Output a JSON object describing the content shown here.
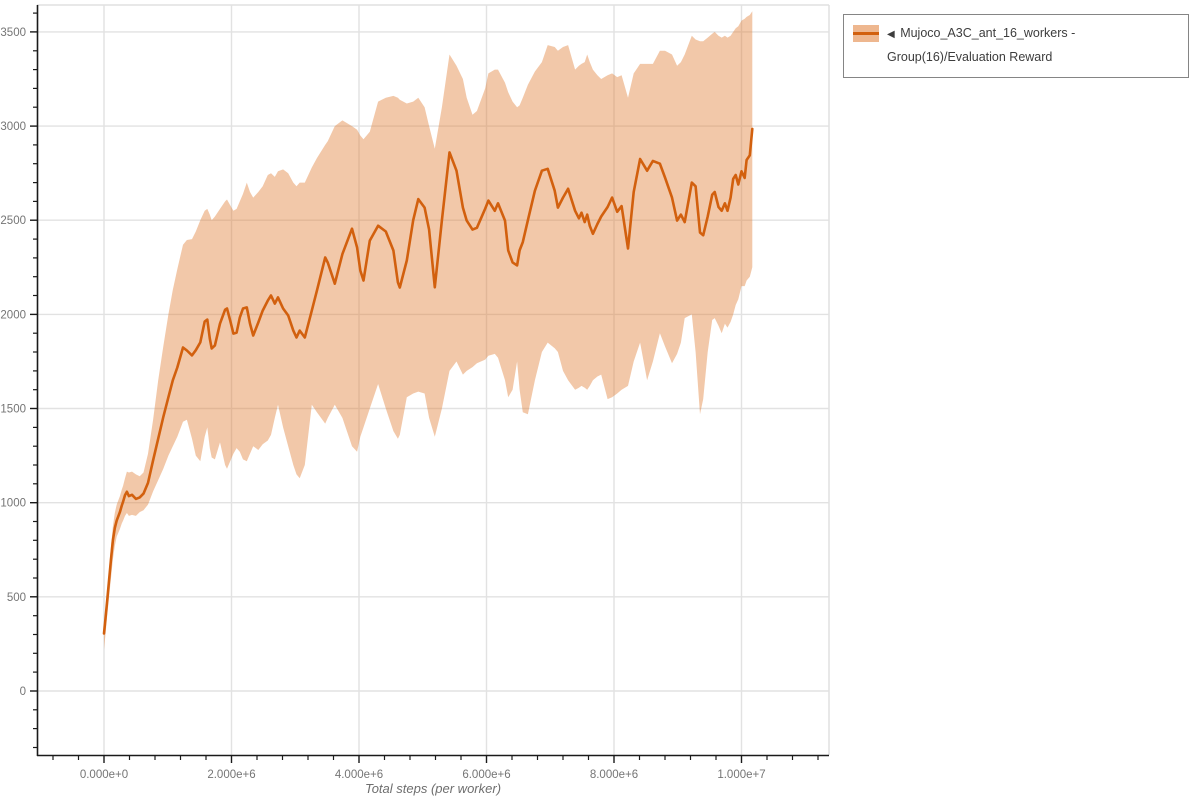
{
  "legend": {
    "marker": "◀",
    "label": "Mujoco_A3C_ant_16_workers - Group(16)/Evaluation Reward"
  },
  "colors": {
    "line": "#d2600e",
    "band_fill": "#e07b33",
    "band_opacity": 0.42,
    "swatch_band_opacity": 0.55,
    "grid": "#e2e2e2",
    "plot_border": "#e0e0e0",
    "axis": "#1a1a1a",
    "tick_label": "#757575",
    "axis_title": "#6e6e6e",
    "legend_border": "#858585",
    "legend_text": "#3d3d3d"
  },
  "chart_data": {
    "type": "line+band",
    "title": "",
    "xlabel": "Total steps (per worker)",
    "ylabel": "",
    "grid": true,
    "legend_position": "top-right",
    "x_range": [
      -1051000,
      11373000
    ],
    "y_range": [
      -340,
      3643
    ],
    "x_scale": 1000000,
    "x_ticks": {
      "major": [
        0,
        2000000,
        4000000,
        6000000,
        8000000,
        10000000
      ],
      "labels": [
        "0.000e+0",
        "2.000e+6",
        "4.000e+6",
        "6.000e+6",
        "8.000e+6",
        "1.000e+7"
      ],
      "minor_step": 400000,
      "minor_range": [
        -800000,
        11200000
      ]
    },
    "y_ticks": {
      "major": [
        0,
        500,
        1000,
        1500,
        2000,
        2500,
        3000,
        3500
      ],
      "labels": [
        "0",
        "500",
        "1000",
        "1500",
        "2000",
        "2500",
        "3000",
        "3500"
      ],
      "minor_step": 100,
      "minor_range": [
        -300,
        3600
      ]
    },
    "series": [
      {
        "name": "Mujoco_A3C_ant_16_workers - Group(16)/Evaluation Reward",
        "x_e6": [
          0.0,
          0.02,
          0.05,
          0.08,
          0.11,
          0.14,
          0.17,
          0.2,
          0.25,
          0.28,
          0.3,
          0.33,
          0.36,
          0.39,
          0.44,
          0.5,
          0.56,
          0.62,
          0.69,
          0.77,
          0.85,
          0.93,
          1.01,
          1.08,
          1.15,
          1.24,
          1.3,
          1.38,
          1.44,
          1.51,
          1.58,
          1.62,
          1.66,
          1.69,
          1.74,
          1.82,
          1.9,
          1.93,
          1.98,
          2.03,
          2.08,
          2.13,
          2.18,
          2.24,
          2.29,
          2.34,
          2.42,
          2.49,
          2.57,
          2.62,
          2.68,
          2.73,
          2.81,
          2.89,
          2.97,
          3.02,
          3.07,
          3.15,
          3.26,
          3.34,
          3.47,
          3.51,
          3.62,
          3.74,
          3.89,
          3.97,
          4.02,
          4.07,
          4.17,
          4.3,
          4.42,
          4.54,
          4.61,
          4.64,
          4.75,
          4.85,
          4.93,
          5.03,
          5.1,
          5.19,
          5.3,
          5.42,
          5.53,
          5.63,
          5.69,
          5.78,
          5.85,
          5.98,
          6.03,
          6.13,
          6.18,
          6.29,
          6.34,
          6.41,
          6.48,
          6.52,
          6.57,
          6.65,
          6.76,
          6.87,
          6.96,
          7.07,
          7.12,
          7.2,
          7.28,
          7.39,
          7.45,
          7.49,
          7.54,
          7.58,
          7.62,
          7.67,
          7.74,
          7.8,
          7.9,
          7.97,
          8.05,
          8.12,
          8.22,
          8.31,
          8.41,
          8.52,
          8.61,
          8.72,
          8.8,
          8.91,
          8.99,
          9.05,
          9.11,
          9.22,
          9.28,
          9.35,
          9.4,
          9.47,
          9.54,
          9.58,
          9.64,
          9.69,
          9.74,
          9.78,
          9.83,
          9.87,
          9.91,
          9.95,
          10.0,
          10.05,
          10.08,
          10.13,
          10.17
        ],
        "mean": [
          305,
          375,
          480,
          590,
          700,
          800,
          865,
          905,
          950,
          985,
          1005,
          1040,
          1058,
          1035,
          1042,
          1020,
          1028,
          1048,
          1105,
          1225,
          1340,
          1455,
          1560,
          1650,
          1718,
          1824,
          1808,
          1782,
          1810,
          1851,
          1962,
          1972,
          1872,
          1819,
          1835,
          1951,
          2025,
          2031,
          1967,
          1898,
          1903,
          1983,
          2031,
          2037,
          1951,
          1888,
          1957,
          2020,
          2073,
          2100,
          2057,
          2090,
          2031,
          1994,
          1914,
          1877,
          1914,
          1877,
          2020,
          2126,
          2302,
          2275,
          2163,
          2320,
          2455,
          2355,
          2233,
          2180,
          2392,
          2471,
          2440,
          2339,
          2170,
          2143,
          2286,
          2500,
          2612,
          2567,
          2450,
          2144,
          2500,
          2860,
          2763,
          2567,
          2498,
          2450,
          2460,
          2562,
          2604,
          2550,
          2590,
          2498,
          2340,
          2276,
          2260,
          2340,
          2384,
          2500,
          2657,
          2763,
          2773,
          2657,
          2567,
          2620,
          2667,
          2550,
          2510,
          2540,
          2490,
          2530,
          2470,
          2428,
          2480,
          2520,
          2570,
          2620,
          2545,
          2575,
          2350,
          2650,
          2825,
          2763,
          2815,
          2800,
          2727,
          2620,
          2498,
          2530,
          2490,
          2700,
          2680,
          2435,
          2420,
          2520,
          2635,
          2650,
          2570,
          2550,
          2590,
          2550,
          2620,
          2720,
          2740,
          2690,
          2760,
          2725,
          2820,
          2845,
          2985
        ],
        "band_upper": [
          345,
          420,
          530,
          650,
          770,
          875,
          945,
          990,
          1035,
          1070,
          1090,
          1130,
          1165,
          1160,
          1165,
          1150,
          1140,
          1160,
          1260,
          1440,
          1650,
          1830,
          2000,
          2130,
          2240,
          2370,
          2395,
          2400,
          2440,
          2500,
          2550,
          2560,
          2530,
          2500,
          2520,
          2560,
          2600,
          2610,
          2580,
          2550,
          2560,
          2600,
          2640,
          2700,
          2650,
          2620,
          2650,
          2680,
          2740,
          2750,
          2730,
          2760,
          2770,
          2750,
          2700,
          2680,
          2700,
          2700,
          2780,
          2830,
          2900,
          2920,
          3000,
          3030,
          3000,
          2980,
          2950,
          2930,
          2970,
          3130,
          3150,
          3160,
          3150,
          3140,
          3120,
          3130,
          3150,
          3100,
          3000,
          2880,
          3100,
          3380,
          3320,
          3250,
          3150,
          3060,
          3080,
          3200,
          3280,
          3300,
          3300,
          3230,
          3180,
          3130,
          3100,
          3110,
          3150,
          3220,
          3290,
          3340,
          3430,
          3420,
          3400,
          3420,
          3430,
          3300,
          3320,
          3330,
          3340,
          3380,
          3340,
          3300,
          3270,
          3250,
          3270,
          3280,
          3260,
          3270,
          3150,
          3280,
          3330,
          3330,
          3330,
          3400,
          3400,
          3380,
          3320,
          3340,
          3380,
          3480,
          3460,
          3450,
          3450,
          3470,
          3490,
          3500,
          3480,
          3470,
          3480,
          3470,
          3480,
          3500,
          3520,
          3530,
          3560,
          3570,
          3580,
          3590,
          3610
        ],
        "band_lower": [
          220,
          290,
          400,
          500,
          600,
          700,
          770,
          820,
          860,
          890,
          905,
          930,
          945,
          930,
          935,
          930,
          950,
          960,
          990,
          1060,
          1120,
          1180,
          1250,
          1300,
          1350,
          1430,
          1440,
          1340,
          1250,
          1220,
          1350,
          1400,
          1290,
          1240,
          1230,
          1320,
          1200,
          1180,
          1220,
          1260,
          1290,
          1270,
          1230,
          1220,
          1260,
          1300,
          1280,
          1310,
          1330,
          1360,
          1450,
          1520,
          1400,
          1300,
          1200,
          1150,
          1130,
          1200,
          1520,
          1480,
          1420,
          1450,
          1520,
          1450,
          1300,
          1270,
          1350,
          1400,
          1500,
          1630,
          1500,
          1380,
          1340,
          1360,
          1560,
          1580,
          1590,
          1580,
          1450,
          1350,
          1500,
          1700,
          1750,
          1680,
          1700,
          1720,
          1740,
          1760,
          1780,
          1790,
          1770,
          1650,
          1560,
          1600,
          1750,
          1600,
          1480,
          1470,
          1650,
          1800,
          1850,
          1820,
          1800,
          1700,
          1650,
          1600,
          1610,
          1620,
          1610,
          1600,
          1620,
          1650,
          1670,
          1680,
          1550,
          1560,
          1580,
          1600,
          1620,
          1750,
          1850,
          1650,
          1750,
          1900,
          1830,
          1740,
          1790,
          1850,
          1980,
          2000,
          1800,
          1470,
          1550,
          1800,
          1970,
          1980,
          1940,
          1900,
          1950,
          1930,
          1960,
          2000,
          2050,
          2080,
          2150,
          2150,
          2180,
          2200,
          2250
        ]
      }
    ]
  }
}
